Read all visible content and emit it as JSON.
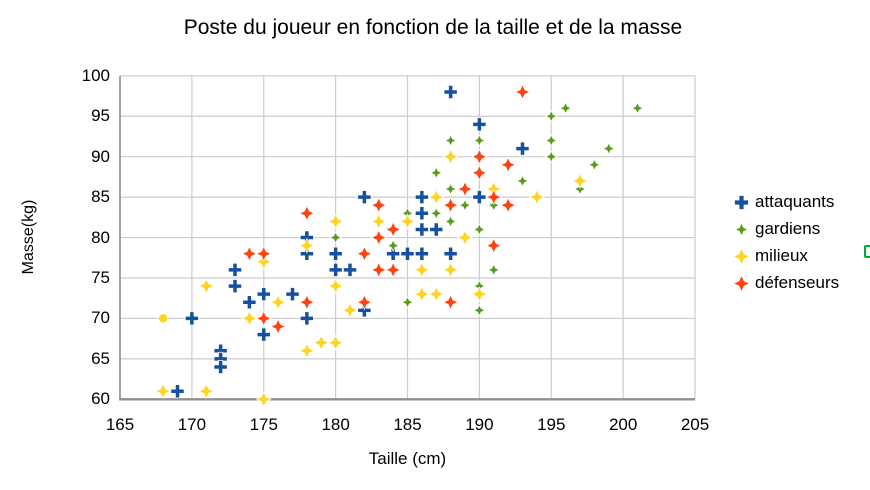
{
  "title": "Poste du joueur en fonction de la taille et de la masse",
  "axes": {
    "x": {
      "title": "Taille (cm)",
      "min": 165,
      "max": 205,
      "ticks": [
        165,
        170,
        175,
        180,
        185,
        190,
        195,
        200,
        205
      ]
    },
    "y": {
      "title": "Masse(kg)",
      "min": 60,
      "max": 100,
      "ticks": [
        100,
        95,
        90,
        85,
        80,
        75,
        70,
        65,
        60
      ]
    }
  },
  "grid": {
    "line_color": "#cccccc",
    "axis_color": "#8f8f8f",
    "background": "#ffffff"
  },
  "artifacts": {
    "edge_chip_color": "#00A933"
  },
  "chart_data": {
    "type": "scatter",
    "title": "Poste du joueur en fonction de la taille et de la masse",
    "xlabel": "Taille (cm)",
    "ylabel": "Masse(kg)",
    "xlim": [
      165,
      205
    ],
    "ylim": [
      60,
      100
    ],
    "grid": true,
    "legend_position": "right",
    "series": [
      {
        "name": "attaquants",
        "color": "#17509E",
        "marker": "plus",
        "points": [
          [
            188,
            98
          ],
          [
            190,
            94
          ],
          [
            193,
            91
          ],
          [
            182,
            85
          ],
          [
            186,
            85
          ],
          [
            190,
            85
          ],
          [
            186,
            83
          ],
          [
            186,
            81
          ],
          [
            187,
            81
          ],
          [
            178,
            80
          ],
          [
            178,
            78
          ],
          [
            180,
            78
          ],
          [
            184,
            78
          ],
          [
            185,
            78
          ],
          [
            186,
            78
          ],
          [
            188,
            78
          ],
          [
            173,
            76
          ],
          [
            180,
            76
          ],
          [
            181,
            76
          ],
          [
            173,
            74
          ],
          [
            175,
            73
          ],
          [
            177,
            73
          ],
          [
            174,
            72
          ],
          [
            182,
            71
          ],
          [
            170,
            70
          ],
          [
            178,
            70
          ],
          [
            175,
            68
          ],
          [
            172,
            66
          ],
          [
            172,
            65
          ],
          [
            172,
            64
          ],
          [
            169,
            61
          ]
        ]
      },
      {
        "name": "gardiens",
        "color": "#579D1C",
        "marker": "star-small",
        "points": [
          [
            196,
            96
          ],
          [
            201,
            96
          ],
          [
            195,
            95
          ],
          [
            188,
            92
          ],
          [
            190,
            92
          ],
          [
            195,
            92
          ],
          [
            199,
            91
          ],
          [
            195,
            90
          ],
          [
            198,
            89
          ],
          [
            187,
            88
          ],
          [
            193,
            87
          ],
          [
            188,
            86
          ],
          [
            197,
            86
          ],
          [
            189,
            84
          ],
          [
            191,
            84
          ],
          [
            185,
            83
          ],
          [
            187,
            83
          ],
          [
            188,
            82
          ],
          [
            190,
            81
          ],
          [
            180,
            80
          ],
          [
            184,
            79
          ],
          [
            191,
            76
          ],
          [
            190,
            74
          ],
          [
            185,
            72
          ],
          [
            190,
            71
          ]
        ]
      },
      {
        "name": "milieux",
        "color": "#FFD320",
        "marker": "star",
        "points": [
          [
            188,
            90
          ],
          [
            197,
            87
          ],
          [
            191,
            86
          ],
          [
            187,
            85
          ],
          [
            194,
            85
          ],
          [
            180,
            82
          ],
          [
            183,
            82
          ],
          [
            185,
            82
          ],
          [
            189,
            80
          ],
          [
            178,
            79
          ],
          [
            175,
            77
          ],
          [
            186,
            76
          ],
          [
            188,
            76
          ],
          [
            171,
            74
          ],
          [
            180,
            74
          ],
          [
            186,
            73
          ],
          [
            187,
            73
          ],
          [
            190,
            73
          ],
          [
            176,
            72
          ],
          [
            181,
            71
          ],
          [
            174,
            70
          ],
          [
            168,
            70,
            "circle"
          ],
          [
            179,
            67
          ],
          [
            180,
            67
          ],
          [
            178,
            66
          ],
          [
            168,
            61
          ],
          [
            171,
            61
          ],
          [
            175,
            60
          ]
        ]
      },
      {
        "name": "défenseurs",
        "color": "#FF420E",
        "marker": "star",
        "points": [
          [
            193,
            98
          ],
          [
            190,
            90
          ],
          [
            192,
            89
          ],
          [
            190,
            88
          ],
          [
            189,
            86
          ],
          [
            191,
            85
          ],
          [
            183,
            84
          ],
          [
            188,
            84
          ],
          [
            192,
            84
          ],
          [
            178,
            83
          ],
          [
            184,
            81
          ],
          [
            183,
            80
          ],
          [
            191,
            79
          ],
          [
            174,
            78
          ],
          [
            175,
            78
          ],
          [
            182,
            78
          ],
          [
            183,
            76
          ],
          [
            184,
            76
          ],
          [
            178,
            72
          ],
          [
            182,
            72
          ],
          [
            188,
            72
          ],
          [
            175,
            70
          ],
          [
            176,
            69
          ]
        ]
      }
    ]
  }
}
